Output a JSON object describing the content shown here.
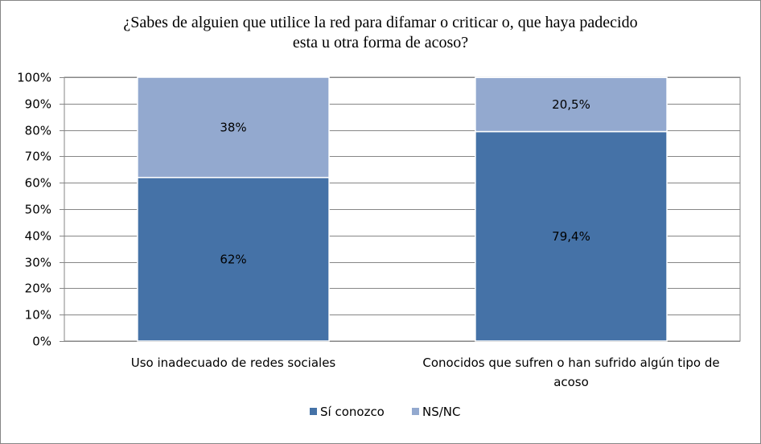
{
  "chart_data": {
    "type": "bar",
    "stacked": true,
    "title_lines": [
      "¿Sabes de alguien que utilice la red para difamar o criticar o, que haya padecido",
      "esta u otra forma de acoso?"
    ],
    "categories": [
      [
        "Uso inadecuado de redes sociales"
      ],
      [
        "Conocidos que sufren o han sufrido algún tipo de",
        "acoso"
      ]
    ],
    "series": [
      {
        "name": "Sí conozco",
        "values": [
          62,
          79.4
        ],
        "labels": [
          "62%",
          "79,4%"
        ],
        "color": "#4572A7"
      },
      {
        "name": "NS/NC",
        "values": [
          38,
          20.5
        ],
        "labels": [
          "38%",
          "20,5%"
        ],
        "color": "#93A9CF"
      }
    ],
    "y_ticks": [
      "0%",
      "10%",
      "20%",
      "30%",
      "40%",
      "50%",
      "60%",
      "70%",
      "80%",
      "90%",
      "100%"
    ],
    "ylim": [
      0,
      100
    ],
    "grid": true,
    "legend_position": "bottom"
  }
}
